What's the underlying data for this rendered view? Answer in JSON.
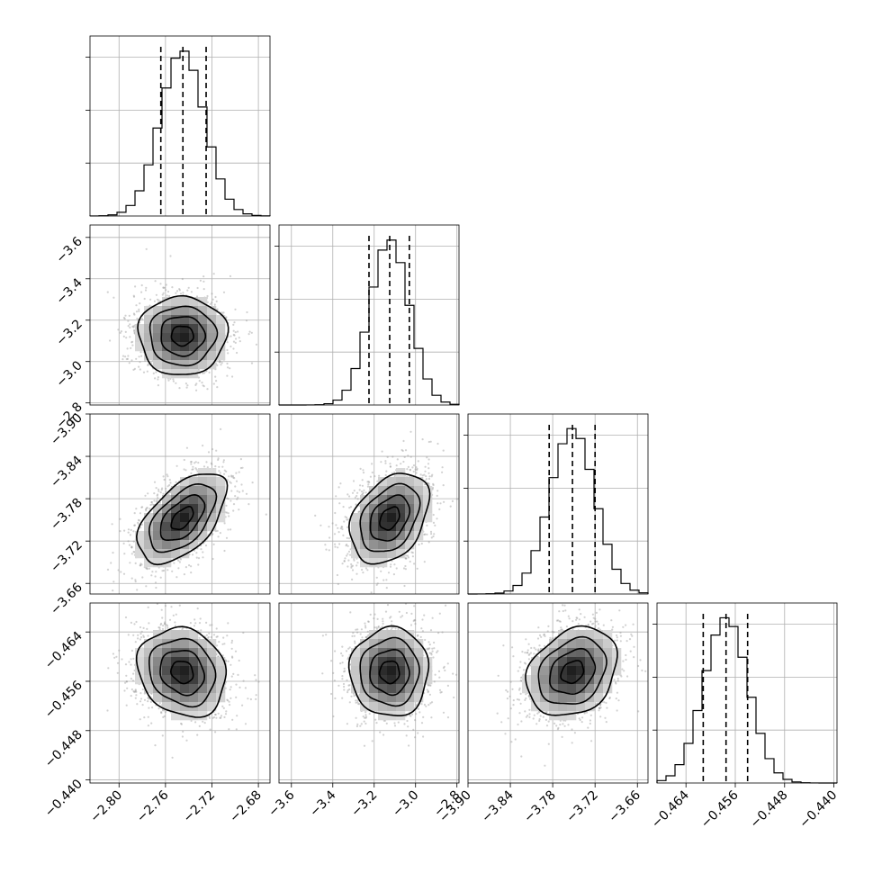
{
  "chart_data": {
    "type": "corner",
    "grid": true,
    "params": [
      {
        "key": "p0",
        "range": [
          -2.825,
          -2.67
        ],
        "ticks": [
          "−2.80",
          "−2.76",
          "−2.72",
          "−2.68"
        ],
        "tick_values": [
          -2.8,
          -2.76,
          -2.72,
          -2.68
        ],
        "mean": -2.7455,
        "sigma": 0.019,
        "quantiles": [
          -2.764,
          -2.745,
          -2.725
        ],
        "hist_max": 0.92
      },
      {
        "key": "p1",
        "range": [
          -3.66,
          -2.79
        ],
        "ticks": [
          "−3.6",
          "−3.4",
          "−3.2",
          "−3.0",
          "−2.8"
        ],
        "tick_values": [
          -3.6,
          -3.4,
          -3.2,
          -3.0,
          -2.8
        ],
        "mean": -3.125,
        "sigma": 0.095,
        "quantiles": [
          -3.225,
          -3.125,
          -3.03
        ],
        "hist_max": 0.92
      },
      {
        "key": "p2",
        "range": [
          -3.9,
          -3.645
        ],
        "ticks": [
          "−3.90",
          "−3.84",
          "−3.78",
          "−3.72",
          "−3.66"
        ],
        "tick_values": [
          -3.9,
          -3.84,
          -3.78,
          -3.72,
          -3.66
        ],
        "mean": -3.752,
        "sigma": 0.032,
        "quantiles": [
          -3.785,
          -3.752,
          -3.72
        ],
        "hist_max": 0.92
      },
      {
        "key": "p3",
        "range": [
          -0.4687,
          -0.4395
        ],
        "ticks": [
          "−0.440",
          "−0.448",
          "−0.456",
          "−0.464"
        ],
        "tick_values": [
          -0.44,
          -0.448,
          -0.456,
          -0.464
        ],
        "x_ticks": [
          "−0.464",
          "−0.456",
          "−0.448",
          "−0.440"
        ],
        "x_tick_values": [
          -0.464,
          -0.456,
          -0.448,
          -0.44
        ],
        "mean": -0.4575,
        "sigma": 0.0036,
        "quantiles": [
          -0.4612,
          -0.4575,
          -0.454
        ],
        "hist_max": 0.92
      }
    ],
    "correlations": [
      {
        "row": 1,
        "col": 0,
        "rho": 0.0
      },
      {
        "row": 2,
        "col": 0,
        "rho": -0.55
      },
      {
        "row": 2,
        "col": 1,
        "rho": -0.35
      },
      {
        "row": 3,
        "col": 0,
        "rho": 0.15
      },
      {
        "row": 3,
        "col": 1,
        "rho": 0.0
      },
      {
        "row": 3,
        "col": 2,
        "rho": -0.25
      }
    ],
    "contour_levels_sigma": [
      0.5,
      1.0,
      1.5,
      2.0
    ],
    "hist_bins": 20,
    "colors": {
      "line": "#000000",
      "grid": "#b0b0b0",
      "scatter": "#9a9a9a",
      "density_dark": "#222222"
    }
  }
}
